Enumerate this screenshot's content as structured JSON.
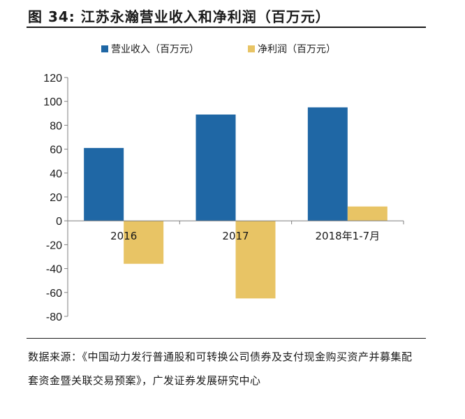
{
  "title": "图 34: 江苏永瀚营业收入和净利润（百万元）",
  "source": "数据来源：《中国动力发行普通股和可转换公司债券及支付现金购买资产并募集配套资金暨关联交易预案》，广发证券发展研究中心",
  "chart_data": {
    "type": "bar",
    "categories": [
      "2016",
      "2017",
      "2018年1-7月"
    ],
    "series": [
      {
        "name": "营业收入（百万元）",
        "values": [
          61,
          89,
          95
        ],
        "color": "#1f67a5"
      },
      {
        "name": "净利润（百万元）",
        "values": [
          -36,
          -65,
          12
        ],
        "color": "#e8c465"
      }
    ],
    "ylim": [
      -80,
      120
    ],
    "yticks": [
      120,
      100,
      80,
      60,
      40,
      20,
      0,
      -20,
      -40,
      -60,
      -80
    ],
    "grid": false,
    "legend_position": "top"
  }
}
